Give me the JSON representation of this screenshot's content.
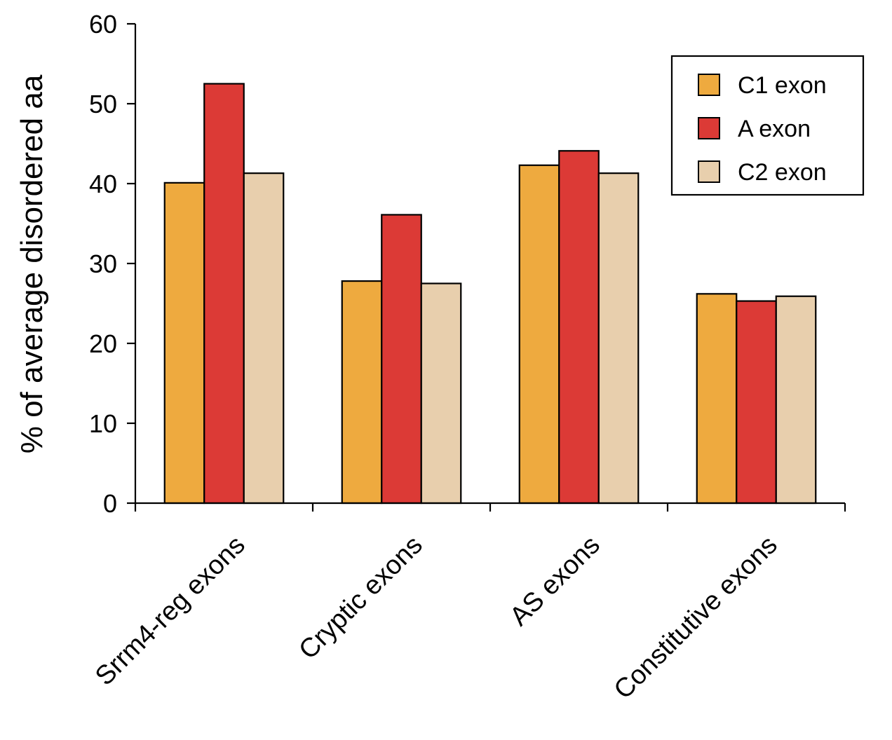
{
  "chart_data": {
    "type": "bar",
    "title": "",
    "xlabel": "",
    "ylabel": "% of average disordered aa",
    "categories": [
      "Srrm4-reg exons",
      "Cryptic exons",
      "AS exons",
      "Constitutive exons"
    ],
    "series": [
      {
        "name": "C1 exon",
        "color": "#EEAA3F",
        "values": [
          40.1,
          27.8,
          42.3,
          26.2
        ]
      },
      {
        "name": "A exon",
        "color": "#DC3A36",
        "values": [
          52.5,
          36.1,
          44.1,
          25.3
        ]
      },
      {
        "name": "C2 exon",
        "color": "#E8CFAD",
        "values": [
          41.3,
          27.5,
          41.3,
          25.9
        ]
      }
    ],
    "ylim": [
      0,
      60
    ],
    "yticks": [
      0,
      10,
      20,
      30,
      40,
      50,
      60
    ],
    "grid": false,
    "legend": "top-right"
  }
}
